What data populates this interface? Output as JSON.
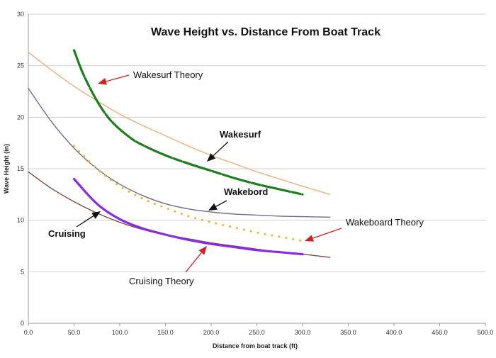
{
  "chart_data": {
    "type": "line",
    "title": "Wave Height vs. Distance From Boat Track",
    "xlabel": "Distance from boat track (ft)",
    "ylabel": "Wave Height (in)",
    "xlim": [
      0,
      500
    ],
    "ylim": [
      0,
      30
    ],
    "x_ticks": [
      "0.0",
      "50.0",
      "100.0",
      "150.0",
      "200.0",
      "250.0",
      "300.0",
      "350.0",
      "400.0",
      "450.0",
      "500.0"
    ],
    "y_ticks": [
      "0",
      "5",
      "10",
      "15",
      "20",
      "25",
      "30"
    ],
    "grid": "horizontal",
    "series": [
      {
        "name": "Wakesurf Theory",
        "color": "#e8b98a",
        "style": "solid",
        "x": [
          0,
          25,
          50,
          75,
          100,
          125,
          150,
          175,
          200,
          225,
          250,
          275,
          300,
          330
        ],
        "y": [
          26.3,
          24.6,
          23.0,
          21.6,
          20.3,
          19.2,
          18.2,
          17.2,
          16.3,
          15.5,
          14.7,
          14.0,
          13.3,
          12.5
        ]
      },
      {
        "name": "Wakesurf",
        "color": "#1e7d1e",
        "style": "dashed",
        "x": [
          50,
          60,
          75,
          90,
          110,
          125,
          150,
          175,
          200,
          225,
          250,
          275,
          300
        ],
        "y": [
          26.5,
          24.2,
          21.6,
          19.7,
          18.1,
          17.3,
          16.3,
          15.5,
          14.8,
          14.1,
          13.5,
          13.0,
          12.5
        ]
      },
      {
        "name": "Wakebord",
        "color": "#6b6b8c",
        "style": "solid",
        "x": [
          0,
          25,
          50,
          75,
          100,
          125,
          150,
          175,
          200,
          225,
          250,
          275,
          300,
          330
        ],
        "y": [
          22.8,
          19.6,
          17.0,
          15.0,
          13.5,
          12.4,
          11.6,
          11.1,
          10.8,
          10.6,
          10.5,
          10.4,
          10.35,
          10.3
        ]
      },
      {
        "name": "Wakeboard Theory",
        "color": "#f0b21e",
        "style": "dotted",
        "x": [
          50,
          75,
          100,
          125,
          150,
          175,
          200,
          225,
          250,
          275,
          300
        ],
        "y": [
          17.2,
          15.0,
          13.3,
          12.1,
          11.2,
          10.4,
          9.8,
          9.3,
          8.8,
          8.4,
          8.0
        ]
      },
      {
        "name": "Cruising",
        "color": "#7a4a44",
        "style": "solid",
        "x": [
          0,
          25,
          50,
          75,
          100,
          125,
          150,
          175,
          200,
          225,
          250,
          275,
          300,
          330
        ],
        "y": [
          14.7,
          13.1,
          11.8,
          10.7,
          9.8,
          9.1,
          8.6,
          8.2,
          7.8,
          7.5,
          7.2,
          6.9,
          6.7,
          6.4
        ]
      },
      {
        "name": "Cruising Theory",
        "color": "#8a2be2",
        "style": "solid",
        "x": [
          50,
          75,
          100,
          125,
          150,
          175,
          200,
          225,
          250,
          275,
          300
        ],
        "y": [
          14.0,
          11.6,
          10.1,
          9.2,
          8.6,
          8.1,
          7.7,
          7.4,
          7.1,
          6.9,
          6.7
        ]
      }
    ],
    "annotations": [
      {
        "name": "annotation-wakesurf-theory",
        "text": "Wakesurf Theory",
        "bold": false,
        "size": 13,
        "arrow": true,
        "arrow_color": "#d62020"
      },
      {
        "name": "annotation-wakesurf",
        "text": "Wakesurf",
        "bold": true,
        "size": 13,
        "arrow": true,
        "arrow_color": "#111111"
      },
      {
        "name": "annotation-wakebord",
        "text": "Wakebord",
        "bold": true,
        "size": 13,
        "arrow": true,
        "arrow_color": "#111111"
      },
      {
        "name": "annotation-wakeboard-theory",
        "text": "Wakeboard Theory",
        "bold": false,
        "size": 13,
        "arrow": true,
        "arrow_color": "#d62020"
      },
      {
        "name": "annotation-cruising",
        "text": "Cruising",
        "bold": true,
        "size": 13,
        "arrow": true,
        "arrow_color": "#111111"
      },
      {
        "name": "annotation-cruising-theory",
        "text": "Cruising Theory",
        "bold": false,
        "size": 13,
        "arrow": true,
        "arrow_color": "#d62020"
      }
    ]
  }
}
